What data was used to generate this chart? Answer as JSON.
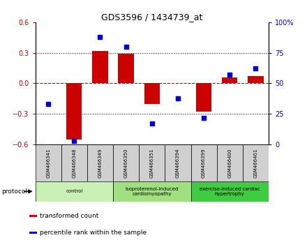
{
  "title": "GDS3596 / 1434739_at",
  "samples": [
    "GSM466341",
    "GSM466348",
    "GSM466349",
    "GSM466350",
    "GSM466351",
    "GSM466394",
    "GSM466399",
    "GSM466400",
    "GSM466401"
  ],
  "bar_values": [
    0.0,
    -0.55,
    0.32,
    0.29,
    -0.2,
    0.0,
    -0.28,
    0.06,
    0.07
  ],
  "percentile_values": [
    33,
    3,
    88,
    80,
    17,
    38,
    22,
    57,
    62
  ],
  "ylim_left": [
    -0.6,
    0.6
  ],
  "ylim_right": [
    0,
    100
  ],
  "yticks_left": [
    -0.6,
    -0.3,
    0.0,
    0.3,
    0.6
  ],
  "yticks_right": [
    0,
    25,
    50,
    75,
    100
  ],
  "bar_color": "#cc0000",
  "dot_color": "#0000cc",
  "zero_line_color": "#cc0000",
  "sample_box_color": "#d0d0d0",
  "groups": [
    {
      "label": "control",
      "start": 0,
      "end": 3,
      "color": "#c8f0b4"
    },
    {
      "label": "isoproterenol-induced\ncardiomyopathy",
      "start": 3,
      "end": 6,
      "color": "#a0e080"
    },
    {
      "label": "exercise-induced cardiac\nhypertrophy",
      "start": 6,
      "end": 9,
      "color": "#40cc40"
    }
  ],
  "legend_items": [
    {
      "label": "transformed count",
      "color": "#cc0000"
    },
    {
      "label": "percentile rank within the sample",
      "color": "#0000cc"
    }
  ],
  "protocol_label": "protocol",
  "background_color": "#ffffff"
}
